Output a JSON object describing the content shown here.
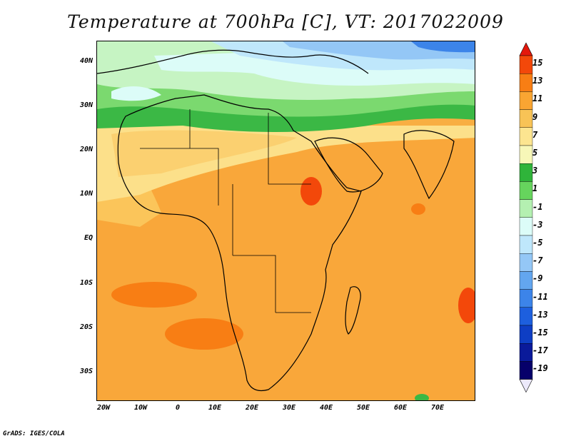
{
  "title": "Temperature at 700hPa [C], VT: 2017022009",
  "footer": "GrADS: IGES/COLA",
  "lat_ticks": [
    "40N",
    "30N",
    "20N",
    "10N",
    "EQ",
    "10S",
    "20S",
    "30S"
  ],
  "lon_ticks": [
    "20W",
    "10W",
    "0",
    "10E",
    "20E",
    "30E",
    "40E",
    "50E",
    "60E",
    "70E"
  ],
  "colorbar": {
    "levels": [
      "15",
      "13",
      "11",
      "9",
      "7",
      "5",
      "3",
      "1",
      "-1",
      "-3",
      "-5",
      "-7",
      "-9",
      "-11",
      "-13",
      "-15",
      "-17",
      "-19"
    ],
    "colors": [
      "#e4180c",
      "#f3480a",
      "#f87e14",
      "#f9a532",
      "#f8c356",
      "#fce590",
      "#f7f7b8",
      "#2fb43a",
      "#66d45d",
      "#b4f0b1",
      "#dcfcf8",
      "#bfe7fb",
      "#94c7f6",
      "#63a6ef",
      "#3c84e9",
      "#1d5fde",
      "#0e3ec4",
      "#0a1a9a",
      "#06006a",
      "#ece9fb"
    ]
  }
}
